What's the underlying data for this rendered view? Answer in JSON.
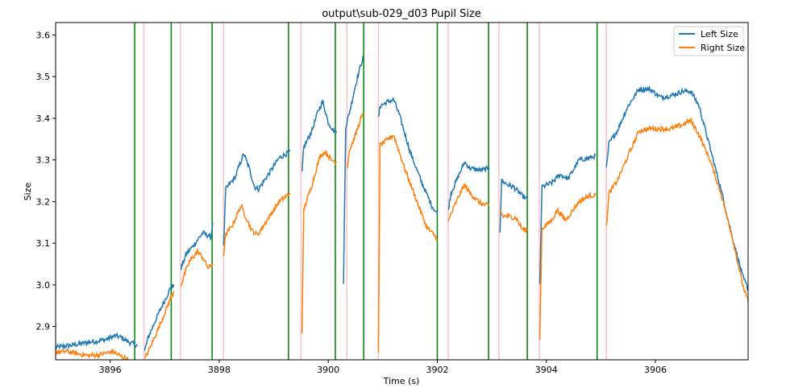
{
  "chart_data": {
    "type": "line",
    "title": "output\\sub-029_d03 Pupil Size",
    "xlabel": "Time (s)",
    "ylabel": "Size",
    "xlim": [
      3895.0,
      3907.7
    ],
    "ylim": [
      2.82,
      3.63
    ],
    "xticks": [
      3896,
      3898,
      3900,
      3902,
      3904,
      3906
    ],
    "yticks": [
      2.9,
      3.0,
      3.1,
      3.2,
      3.3,
      3.4,
      3.5,
      3.6
    ],
    "xtick_labels": [
      "3896",
      "3898",
      "3900",
      "3902",
      "3904",
      "3906"
    ],
    "ytick_labels": [
      "2.9",
      "3.0",
      "3.1",
      "3.2",
      "3.3",
      "3.4",
      "3.5",
      "3.6"
    ],
    "grid": false,
    "legend_position": "top-right",
    "series": [
      {
        "name": "Left Size",
        "color": "#1f77b4",
        "segments": [
          [
            [
              3895.0,
              2.85
            ],
            [
              3895.3,
              2.855
            ],
            [
              3895.6,
              2.862
            ],
            [
              3895.9,
              2.868
            ],
            [
              3896.1,
              2.878
            ],
            [
              3896.2,
              2.874
            ],
            [
              3896.35,
              2.862
            ],
            [
              3896.5,
              2.855
            ]
          ],
          [
            [
              3896.63,
              2.84
            ],
            [
              3896.7,
              2.875
            ],
            [
              3896.9,
              2.935
            ],
            [
              3897.1,
              2.99
            ],
            [
              3897.17,
              3.0
            ]
          ],
          [
            [
              3897.3,
              3.04
            ],
            [
              3897.4,
              3.075
            ],
            [
              3897.5,
              3.09
            ],
            [
              3897.7,
              3.125
            ],
            [
              3897.85,
              3.115
            ],
            [
              3897.88,
              3.15
            ]
          ],
          [
            [
              3898.08,
              3.09
            ],
            [
              3898.12,
              3.23
            ],
            [
              3898.3,
              3.26
            ],
            [
              3898.35,
              3.28
            ],
            [
              3898.45,
              3.315
            ],
            [
              3898.55,
              3.28
            ],
            [
              3898.65,
              3.235
            ],
            [
              3898.72,
              3.23
            ],
            [
              3898.9,
              3.265
            ],
            [
              3899.1,
              3.305
            ],
            [
              3899.3,
              3.32
            ]
          ],
          [
            [
              3899.52,
              3.27
            ],
            [
              3899.55,
              3.33
            ],
            [
              3899.7,
              3.37
            ],
            [
              3899.82,
              3.42
            ],
            [
              3899.9,
              3.44
            ],
            [
              3900.0,
              3.39
            ],
            [
              3900.1,
              3.37
            ],
            [
              3900.15,
              3.37
            ]
          ],
          [
            [
              3900.28,
              3.0
            ],
            [
              3900.32,
              3.38
            ],
            [
              3900.4,
              3.42
            ],
            [
              3900.5,
              3.48
            ],
            [
              3900.6,
              3.53
            ],
            [
              3900.65,
              3.55
            ]
          ],
          [
            [
              3900.92,
              3.4
            ],
            [
              3900.95,
              3.43
            ],
            [
              3901.1,
              3.44
            ],
            [
              3901.2,
              3.445
            ],
            [
              3901.3,
              3.41
            ],
            [
              3901.5,
              3.32
            ],
            [
              3901.7,
              3.25
            ],
            [
              3901.9,
              3.19
            ],
            [
              3902.0,
              3.17
            ]
          ],
          [
            [
              3902.2,
              3.18
            ],
            [
              3902.25,
              3.22
            ],
            [
              3902.4,
              3.265
            ],
            [
              3902.5,
              3.295
            ],
            [
              3902.6,
              3.28
            ],
            [
              3902.8,
              3.275
            ],
            [
              3902.95,
              3.28
            ]
          ],
          [
            [
              3903.15,
              3.13
            ],
            [
              3903.18,
              3.25
            ],
            [
              3903.3,
              3.24
            ],
            [
              3903.4,
              3.235
            ],
            [
              3903.55,
              3.215
            ],
            [
              3903.65,
              3.205
            ]
          ],
          [
            [
              3903.88,
              3.0
            ],
            [
              3903.92,
              3.235
            ],
            [
              3904.1,
              3.245
            ],
            [
              3904.25,
              3.265
            ],
            [
              3904.4,
              3.255
            ],
            [
              3904.6,
              3.3
            ],
            [
              3904.8,
              3.305
            ],
            [
              3904.9,
              3.31
            ]
          ],
          [
            [
              3905.1,
              3.28
            ],
            [
              3905.15,
              3.34
            ],
            [
              3905.3,
              3.37
            ],
            [
              3905.5,
              3.43
            ],
            [
              3905.7,
              3.47
            ],
            [
              3905.9,
              3.47
            ],
            [
              3906.1,
              3.45
            ],
            [
              3906.3,
              3.455
            ],
            [
              3906.5,
              3.465
            ],
            [
              3906.65,
              3.465
            ],
            [
              3906.8,
              3.43
            ],
            [
              3907.0,
              3.33
            ],
            [
              3907.2,
              3.23
            ],
            [
              3907.4,
              3.12
            ],
            [
              3907.6,
              3.02
            ],
            [
              3907.7,
              2.99
            ]
          ]
        ]
      },
      {
        "name": "Right Size",
        "color": "#ff7f0e",
        "segments": [
          [
            [
              3895.0,
              2.838
            ],
            [
              3895.2,
              2.84
            ],
            [
              3895.4,
              2.835
            ],
            [
              3895.6,
              2.83
            ],
            [
              3895.8,
              2.832
            ],
            [
              3896.05,
              2.84
            ],
            [
              3896.2,
              2.828
            ],
            [
              3896.35,
              2.82
            ]
          ],
          [
            [
              3896.63,
              2.82
            ],
            [
              3896.7,
              2.84
            ],
            [
              3896.9,
              2.9
            ],
            [
              3897.1,
              2.965
            ],
            [
              3897.17,
              2.985
            ]
          ],
          [
            [
              3897.3,
              3.0
            ],
            [
              3897.35,
              3.02
            ],
            [
              3897.45,
              3.055
            ],
            [
              3897.6,
              3.08
            ],
            [
              3897.7,
              3.065
            ],
            [
              3897.8,
              3.04
            ],
            [
              3897.88,
              3.05
            ]
          ],
          [
            [
              3898.08,
              3.07
            ],
            [
              3898.12,
              3.12
            ],
            [
              3898.25,
              3.145
            ],
            [
              3898.4,
              3.19
            ],
            [
              3898.5,
              3.16
            ],
            [
              3898.6,
              3.13
            ],
            [
              3898.7,
              3.12
            ],
            [
              3898.9,
              3.16
            ],
            [
              3899.1,
              3.2
            ],
            [
              3899.3,
              3.22
            ]
          ],
          [
            [
              3899.52,
              2.89
            ],
            [
              3899.55,
              3.18
            ],
            [
              3899.7,
              3.24
            ],
            [
              3899.85,
              3.31
            ],
            [
              3899.95,
              3.32
            ],
            [
              3900.05,
              3.3
            ],
            [
              3900.15,
              3.295
            ]
          ],
          [
            [
              3900.35,
              3.28
            ],
            [
              3900.38,
              3.32
            ],
            [
              3900.5,
              3.36
            ],
            [
              3900.6,
              3.4
            ],
            [
              3900.65,
              3.41
            ]
          ],
          [
            [
              3900.92,
              2.84
            ],
            [
              3900.95,
              3.335
            ],
            [
              3901.05,
              3.345
            ],
            [
              3901.2,
              3.36
            ],
            [
              3901.4,
              3.28
            ],
            [
              3901.6,
              3.21
            ],
            [
              3901.8,
              3.14
            ],
            [
              3902.0,
              3.11
            ]
          ],
          [
            [
              3902.2,
              3.15
            ],
            [
              3902.25,
              3.17
            ],
            [
              3902.4,
              3.215
            ],
            [
              3902.5,
              3.24
            ],
            [
              3902.6,
              3.22
            ],
            [
              3902.8,
              3.195
            ],
            [
              3902.95,
              3.19
            ]
          ],
          [
            [
              3903.15,
              3.18
            ],
            [
              3903.2,
              3.165
            ],
            [
              3903.3,
              3.165
            ],
            [
              3903.45,
              3.16
            ],
            [
              3903.55,
              3.135
            ],
            [
              3903.65,
              3.13
            ]
          ],
          [
            [
              3903.88,
              2.87
            ],
            [
              3903.92,
              3.135
            ],
            [
              3904.1,
              3.155
            ],
            [
              3904.2,
              3.18
            ],
            [
              3904.35,
              3.155
            ],
            [
              3904.6,
              3.2
            ],
            [
              3904.8,
              3.215
            ],
            [
              3904.9,
              3.215
            ]
          ],
          [
            [
              3905.1,
              3.14
            ],
            [
              3905.15,
              3.22
            ],
            [
              3905.3,
              3.25
            ],
            [
              3905.5,
              3.31
            ],
            [
              3905.7,
              3.37
            ],
            [
              3905.9,
              3.375
            ],
            [
              3906.1,
              3.375
            ],
            [
              3906.3,
              3.375
            ],
            [
              3906.5,
              3.385
            ],
            [
              3906.65,
              3.395
            ],
            [
              3906.8,
              3.36
            ],
            [
              3907.0,
              3.3
            ],
            [
              3907.2,
              3.22
            ],
            [
              3907.4,
              3.12
            ],
            [
              3907.6,
              3.0
            ],
            [
              3907.7,
              2.96
            ]
          ]
        ]
      }
    ],
    "vlines_green": [
      3896.45,
      3897.12,
      3897.87,
      3899.27,
      3900.13,
      3900.65,
      3902.0,
      3902.94,
      3903.65,
      3904.93
    ],
    "vlines_pink": [
      3896.62,
      3897.29,
      3898.08,
      3899.5,
      3900.34,
      3900.92,
      3902.2,
      3903.13,
      3903.87,
      3905.1
    ],
    "colors": {
      "green": "#008000",
      "pink": "#ffc0cb"
    }
  }
}
